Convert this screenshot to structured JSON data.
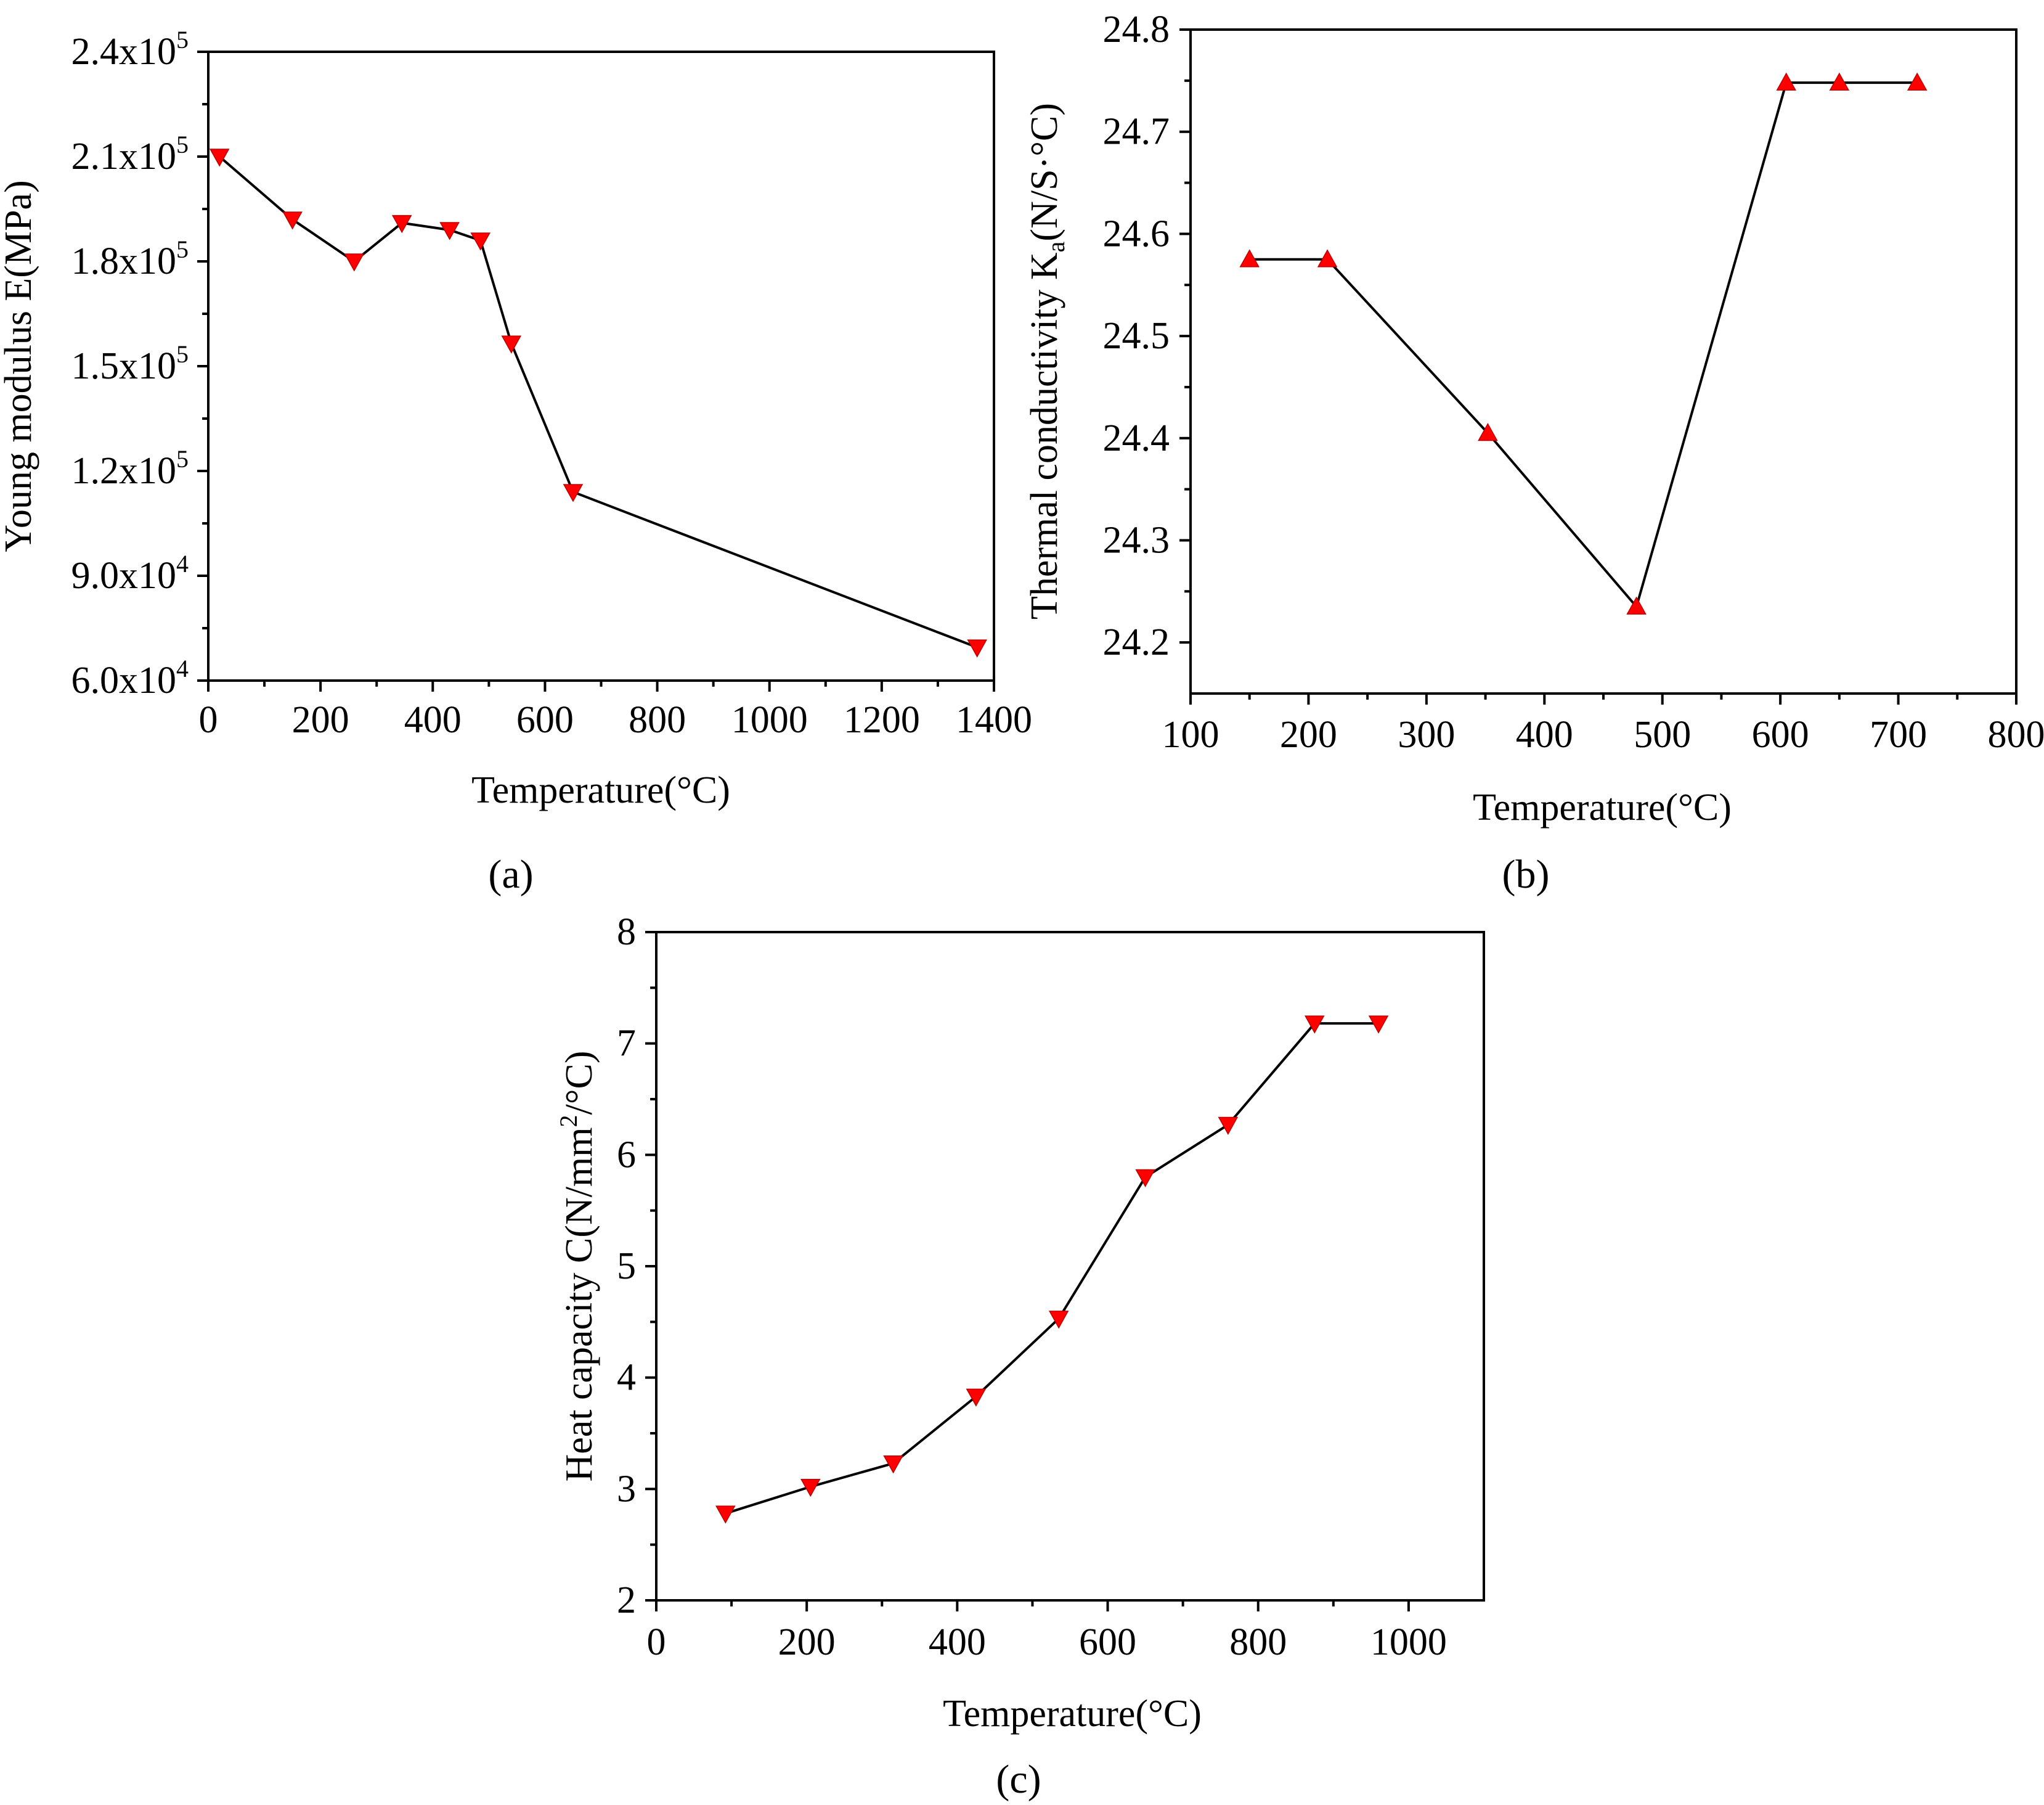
{
  "chart_data": [
    {
      "type": "line",
      "panel_label": "(a)",
      "xlabel": "Temperature(°C)",
      "ylabel": "Young modulus E(MPa)",
      "xlim": [
        0,
        1400
      ],
      "ylim": [
        60000,
        240000
      ],
      "x_ticks": [
        0,
        200,
        400,
        600,
        800,
        1000,
        1200,
        1400
      ],
      "x_tick_labels": [
        "0",
        "200",
        "400",
        "600",
        "800",
        "1000",
        "1200",
        "1400"
      ],
      "y_ticks": [
        60000,
        90000,
        120000,
        150000,
        180000,
        210000,
        240000
      ],
      "y_tick_labels": [
        {
          "mantissa": "6.0x10",
          "exp": "4"
        },
        {
          "mantissa": "9.0x10",
          "exp": "4"
        },
        {
          "mantissa": "1.2x10",
          "exp": "5"
        },
        {
          "mantissa": "1.5x10",
          "exp": "5"
        },
        {
          "mantissa": "1.8x10",
          "exp": "5"
        },
        {
          "mantissa": "2.1x10",
          "exp": "5"
        },
        {
          "mantissa": "2.4x10",
          "exp": "5"
        }
      ],
      "marker": "triangle-down",
      "marker_color": "#ff0000",
      "line_color": "#000000",
      "x": [
        20,
        150,
        260,
        345,
        430,
        485,
        540,
        650,
        1370
      ],
      "y": [
        210000,
        192000,
        180000,
        191000,
        189000,
        186000,
        156500,
        114000,
        69500
      ]
    },
    {
      "type": "line",
      "panel_label": "(b)",
      "xlabel": "Temperature(°C)",
      "ylabel": "Thermal conductivity K",
      "ylabel_subscript": "a",
      "ylabel_unit": "(N/S·°C)",
      "xlim": [
        100,
        800
      ],
      "ylim": [
        24.15,
        24.8
      ],
      "x_ticks": [
        100,
        200,
        300,
        400,
        500,
        600,
        700,
        800
      ],
      "x_tick_labels": [
        "100",
        "200",
        "300",
        "400",
        "500",
        "600",
        "700",
        "800"
      ],
      "y_ticks": [
        24.2,
        24.3,
        24.4,
        24.5,
        24.6,
        24.7,
        24.8
      ],
      "y_tick_labels": [
        "24.2",
        "24.3",
        "24.4",
        "24.5",
        "24.6",
        "24.7",
        "24.8"
      ],
      "marker": "triangle-up",
      "marker_color": "#ff0000",
      "line_color": "#000000",
      "x": [
        150,
        216,
        352,
        478,
        605,
        650,
        716
      ],
      "y": [
        24.575,
        24.575,
        24.405,
        24.235,
        24.748,
        24.748,
        24.748
      ]
    },
    {
      "type": "line",
      "panel_label": "(c)",
      "xlabel": "Temperature(°C)",
      "ylabel": "Heat capacity C(N/mm",
      "ylabel_superscript": "2",
      "ylabel_unit": "/°C)",
      "xlim": [
        0,
        1100
      ],
      "ylim": [
        2,
        8
      ],
      "x_ticks": [
        0,
        200,
        400,
        600,
        800,
        1000
      ],
      "x_tick_labels": [
        "0",
        "200",
        "400",
        "600",
        "800",
        "1000"
      ],
      "y_ticks": [
        2,
        3,
        4,
        5,
        6,
        7,
        8
      ],
      "y_tick_labels": [
        "2",
        "3",
        "4",
        "5",
        "6",
        "7",
        "8"
      ],
      "marker": "triangle-down",
      "marker_color": "#ff0000",
      "line_color": "#000000",
      "x": [
        92,
        205,
        315,
        425,
        535,
        650,
        760,
        875,
        960
      ],
      "y": [
        2.78,
        3.02,
        3.23,
        3.83,
        4.53,
        5.8,
        6.27,
        7.18,
        7.18
      ]
    }
  ]
}
